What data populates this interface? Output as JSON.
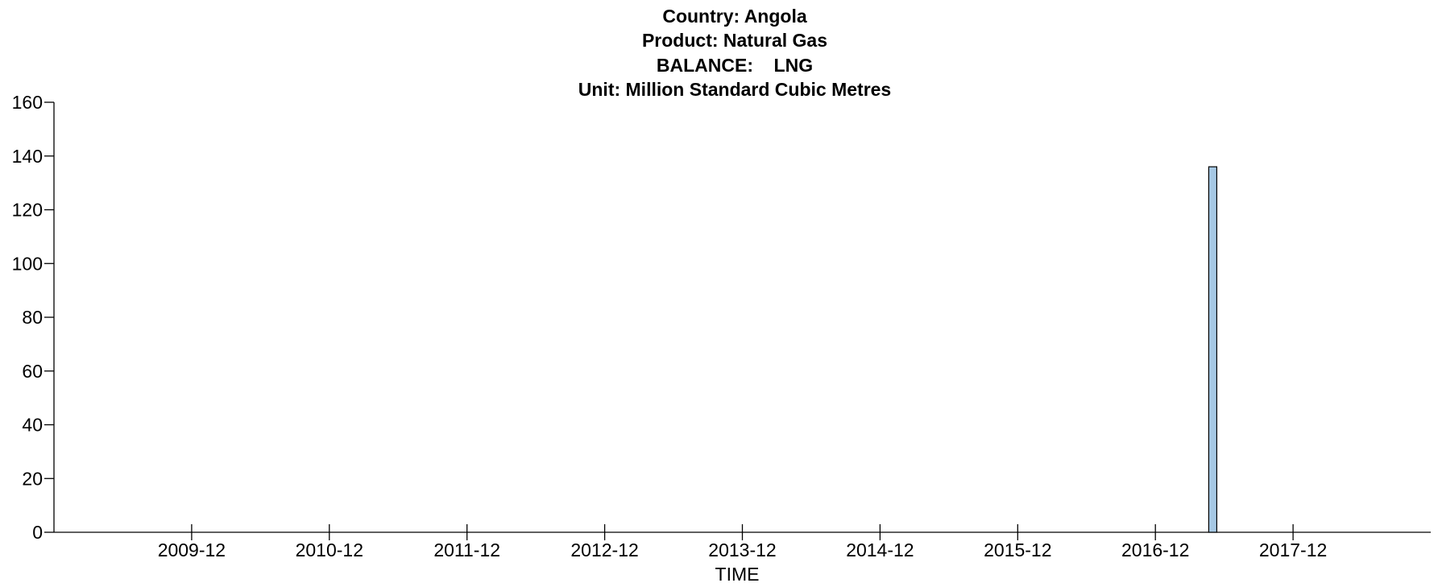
{
  "chart_data": {
    "type": "bar",
    "title_lines": [
      "Country: Angola",
      "Product: Natural Gas",
      "BALANCE:    LNG",
      "Unit: Million Standard Cubic Metres"
    ],
    "xlabel": "TIME",
    "ylabel": "",
    "ylim": [
      0,
      160
    ],
    "yticks": [
      0,
      20,
      40,
      60,
      80,
      100,
      120,
      140,
      160
    ],
    "x_range": [
      "2008-12",
      "2018-12"
    ],
    "xticks": [
      "2009-12",
      "2010-12",
      "2011-12",
      "2012-12",
      "2013-12",
      "2014-12",
      "2015-12",
      "2016-12",
      "2017-12"
    ],
    "grid": false,
    "bar_color": "#a6c8e4",
    "points": [
      {
        "x": "2017-05",
        "value": 136
      }
    ]
  }
}
